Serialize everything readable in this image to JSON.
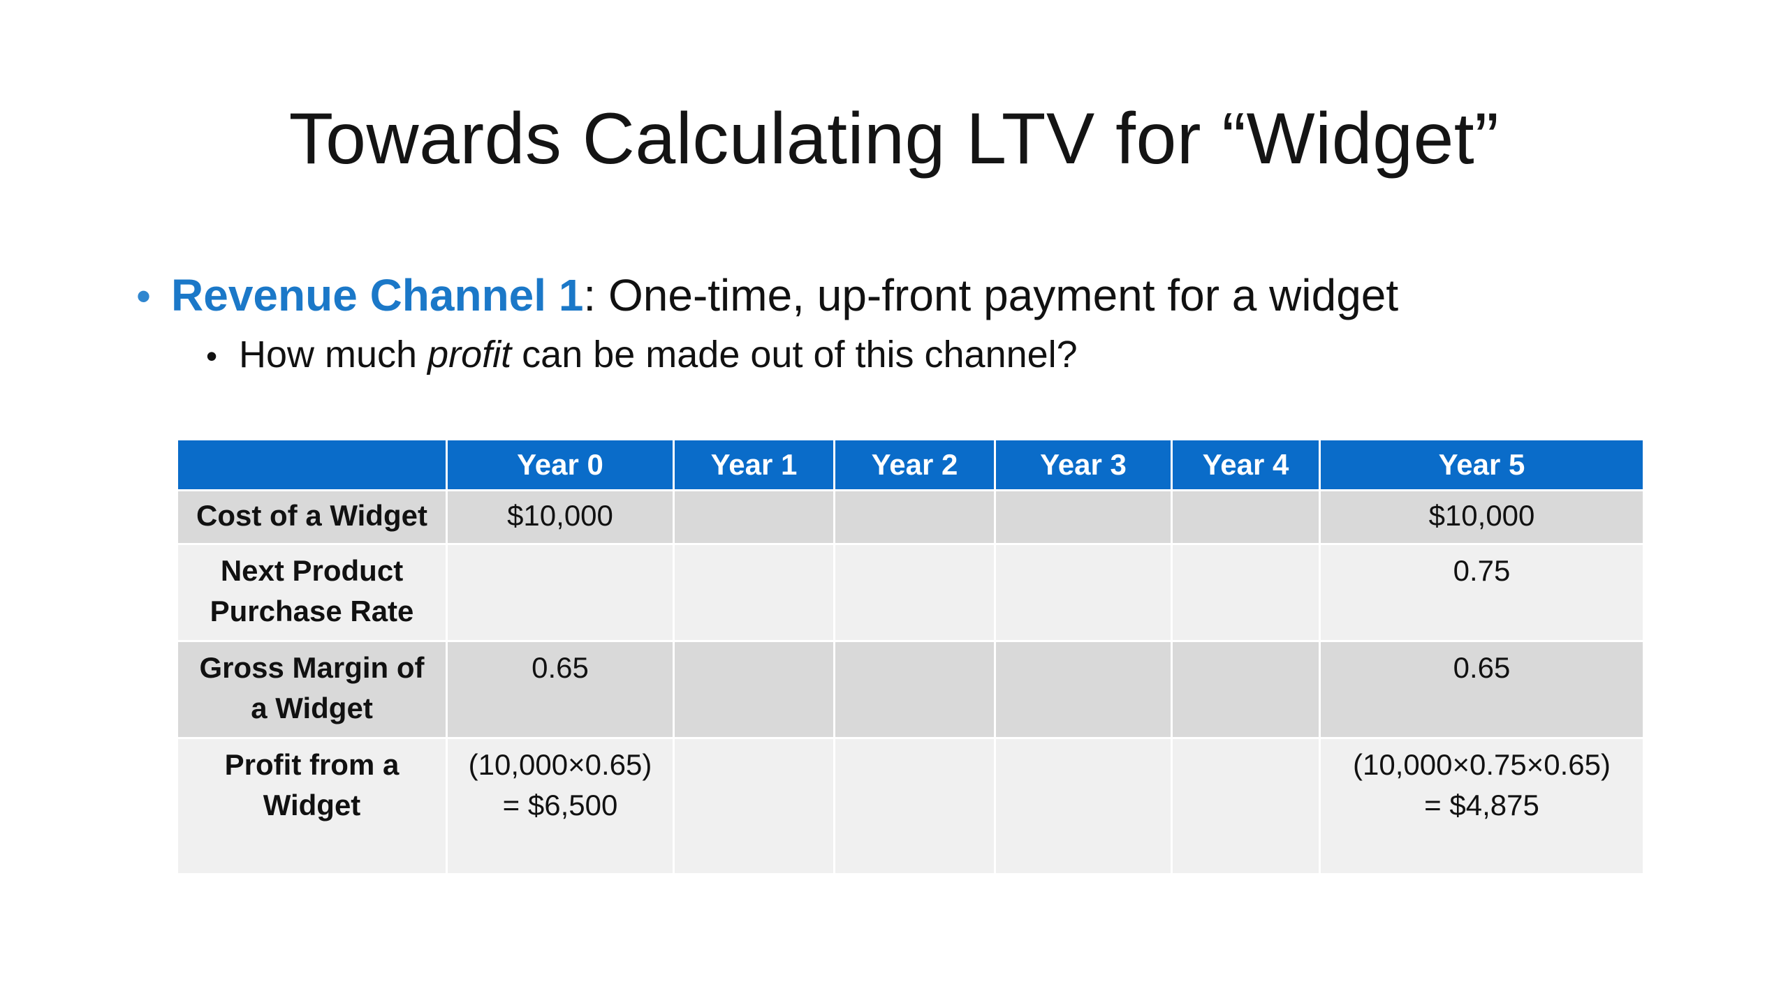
{
  "slide": {
    "title": "Towards Calculating LTV for “Widget”",
    "bullet1": {
      "highlight": "Revenue Channel 1",
      "rest": ": One-time, up-front payment for a widget"
    },
    "bullet2": {
      "before": "How much ",
      "emphasis": "profit",
      "after": " can be made out of this channel?"
    }
  },
  "colors": {
    "header_blue": "#0a6cc9",
    "highlight_blue": "#1b78c8",
    "row_dark": "#d9d9d9",
    "row_light": "#f0f0f0"
  },
  "table": {
    "headers": [
      "",
      "Year 0",
      "Year 1",
      "Year 2",
      "Year 3",
      "Year 4",
      "Year 5"
    ],
    "rows": [
      {
        "label": "Cost of a Widget",
        "cells": [
          "$10,000",
          "",
          "",
          "",
          "",
          "$10,000"
        ]
      },
      {
        "label_lines": [
          "Next Product",
          "Purchase Rate"
        ],
        "cells": [
          "",
          "",
          "",
          "",
          "",
          "0.75"
        ]
      },
      {
        "label_lines": [
          "Gross Margin of",
          "a Widget"
        ],
        "cells": [
          "0.65",
          "",
          "",
          "",
          "",
          "0.65"
        ]
      },
      {
        "label_lines": [
          "Profit from a",
          "Widget"
        ],
        "year0_lines": [
          "(10,000×0.65)",
          "= $6,500"
        ],
        "cells": [
          "",
          "",
          "",
          ""
        ],
        "year5_lines": [
          "(10,000×0.75×0.65)",
          "= $4,875"
        ]
      }
    ]
  }
}
